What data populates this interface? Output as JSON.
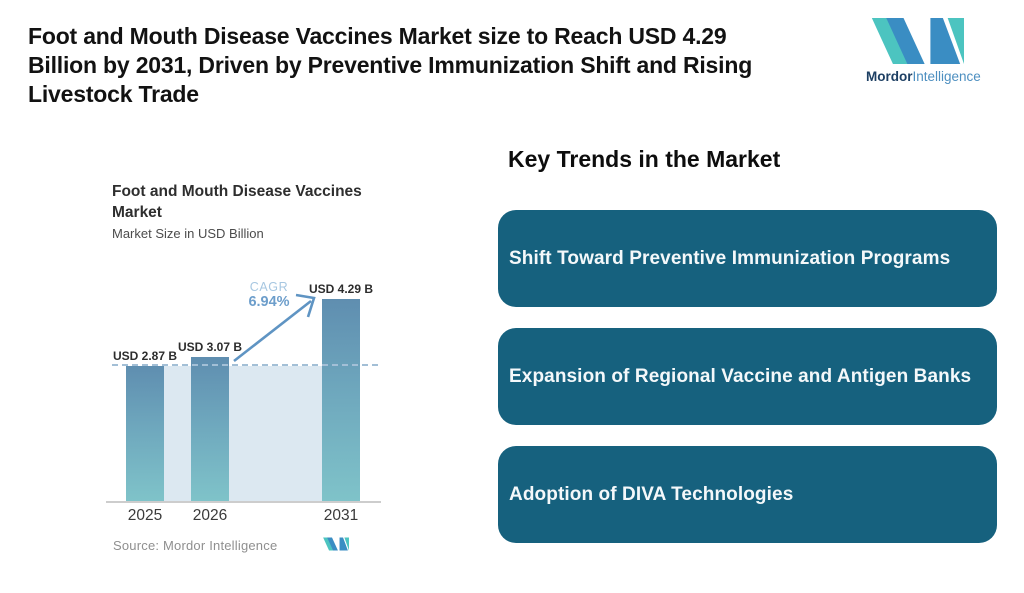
{
  "header": {
    "title_lines": [
      "Foot and Mouth Disease Vaccines Market size to Reach USD 4.29",
      "Billion by 2031, Driven by Preventive Immunization Shift and Rising",
      "Livestock Trade"
    ]
  },
  "brand": {
    "name_bold": "Mordor",
    "name_regular": "Intelligence",
    "mark_colors": {
      "teal": "#4cc4c0",
      "blue": "#3a8dc3"
    },
    "text_colors": {
      "bold": "#1d3f63",
      "regular": "#4d8fc0"
    }
  },
  "chart_data": {
    "type": "bar",
    "title": "Foot and Mouth Disease Vaccines Market",
    "subtitle": "Market Size in USD Billion",
    "categories": [
      "2025",
      "2026",
      "2031"
    ],
    "values": [
      2.87,
      3.07,
      4.29
    ],
    "value_labels": [
      "USD 2.87 B",
      "USD 3.07 B",
      "USD 4.29 B"
    ],
    "cagr": {
      "label": "CAGR",
      "value": "6.94%"
    },
    "source": "Source: Mordor Intelligence",
    "ylim": [
      0,
      4.6
    ],
    "grid": false,
    "legend": "none",
    "reference_line_at": 2.87,
    "reference_line_style": "dashed",
    "bar_gradient": [
      "#5f8eb0",
      "#7fc3c9"
    ],
    "background_band_color": "#dce8f1",
    "arrow_color": "#5f94c3"
  },
  "key_trends": {
    "heading": "Key Trends in the Market",
    "card_color": "#16617e",
    "items": [
      "Shift Toward Preventive Immunization Programs",
      "Expansion of Regional Vaccine and Antigen Banks",
      "Adoption of DIVA Technologies"
    ]
  }
}
